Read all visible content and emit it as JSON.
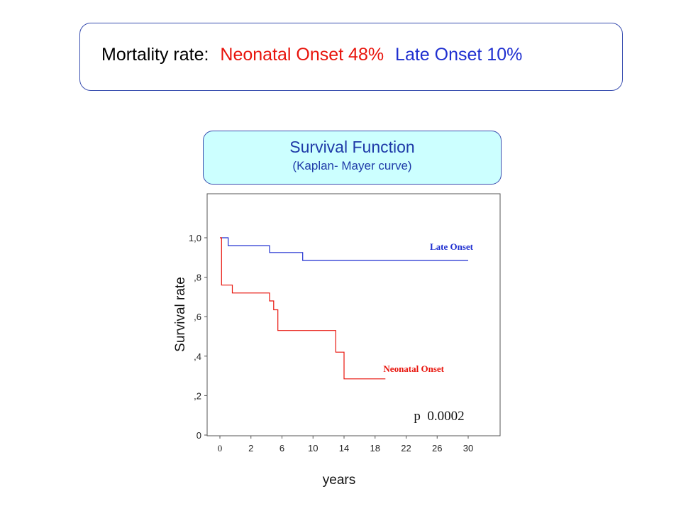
{
  "banner": {
    "prefix": "Mortality rate:",
    "neonatal": "Neonatal Onset  48%",
    "late": "Late Onset   10%",
    "prefix_color": "#000000",
    "neonatal_color": "#e8140c",
    "late_color": "#1f2fd0"
  },
  "subtitle_box": {
    "title": "Survival Function",
    "subtitle": "(Kaplan- Mayer curve)"
  },
  "chart_data": {
    "type": "line",
    "step": true,
    "xlabel": "years",
    "ylabel": "Survival rate",
    "x_ticks": [
      "0",
      "2",
      "6",
      "10",
      "14",
      "18",
      "22",
      "26",
      "30"
    ],
    "y_ticks": [
      {
        "value": 0,
        "label": "0"
      },
      {
        "value": 0.2,
        "label": ",2"
      },
      {
        "value": 0.4,
        "label": ",4"
      },
      {
        "value": 0.6,
        "label": ",6"
      },
      {
        "value": 0.8,
        "label": ",8"
      },
      {
        "value": 1.0,
        "label": "1,0"
      }
    ],
    "ylim": [
      0,
      1.2
    ],
    "grid": false,
    "annotation": "p  0.0002",
    "series": [
      {
        "name": "Late Onset",
        "color": "#1f2fd0",
        "points": [
          [
            0,
            1.0
          ],
          [
            1,
            1.0
          ],
          [
            1,
            0.96
          ],
          [
            6,
            0.96
          ],
          [
            6,
            0.925
          ],
          [
            10,
            0.925
          ],
          [
            10,
            0.885
          ],
          [
            30,
            0.885
          ]
        ]
      },
      {
        "name": "Neonatal Onset",
        "color": "#e8140c",
        "points": [
          [
            0,
            1.0
          ],
          [
            0.2,
            1.0
          ],
          [
            0.2,
            0.76
          ],
          [
            1.5,
            0.76
          ],
          [
            1.5,
            0.72
          ],
          [
            6,
            0.72
          ],
          [
            6,
            0.68
          ],
          [
            6.5,
            0.68
          ],
          [
            6.5,
            0.635
          ],
          [
            7,
            0.635
          ],
          [
            7,
            0.53
          ],
          [
            14,
            0.53
          ],
          [
            14,
            0.42
          ],
          [
            15,
            0.42
          ],
          [
            15,
            0.285
          ],
          [
            20,
            0.285
          ]
        ]
      }
    ]
  }
}
